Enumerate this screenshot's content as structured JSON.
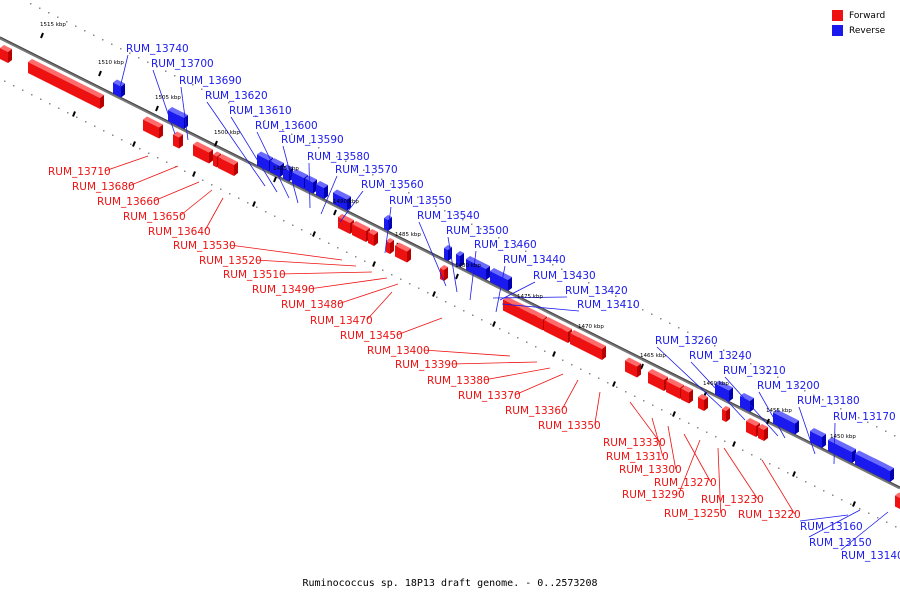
{
  "legend": {
    "forward": {
      "label": "Forward",
      "color": "#ee1111"
    },
    "reverse": {
      "label": "Reverse",
      "color": "#1a1aee"
    }
  },
  "caption": "Ruminococcus sp. 18P13 draft genome. - 0..2573208",
  "scale_labels": [
    "1515 kbp",
    "1510 kbp",
    "1505 kbp",
    "1500 kbp",
    "1495 kbp",
    "1490 kbp",
    "1485 kbp",
    "1480 kbp",
    "1475 kbp",
    "1470 kbp",
    "1465 kbp",
    "1460 kbp",
    "1455 kbp",
    "1450 kbp"
  ],
  "reverse_genes": [
    "RUM_13740",
    "RUM_13700",
    "RUM_13690",
    "RUM_13620",
    "RUM_13610",
    "RUM_13600",
    "RUM_13590",
    "RUM_13580",
    "RUM_13570",
    "RUM_13560",
    "RUM_13550",
    "RUM_13540",
    "RUM_13500",
    "RUM_13460",
    "RUM_13440",
    "RUM_13430",
    "RUM_13420",
    "RUM_13410",
    "RUM_13260",
    "RUM_13240",
    "RUM_13210",
    "RUM_13200",
    "RUM_13180",
    "RUM_13170",
    "RUM_13160",
    "RUM_13150",
    "RUM_13140"
  ],
  "forward_genes": [
    "RUM_13710",
    "RUM_13680",
    "RUM_13660",
    "RUM_13650",
    "RUM_13640",
    "RUM_13530",
    "RUM_13520",
    "RUM_13510",
    "RUM_13490",
    "RUM_13480",
    "RUM_13470",
    "RUM_13450",
    "RUM_13400",
    "RUM_13390",
    "RUM_13380",
    "RUM_13370",
    "RUM_13360",
    "RUM_13350",
    "RUM_13330",
    "RUM_13310",
    "RUM_13300",
    "RUM_13270",
    "RUM_13290",
    "RUM_13230",
    "RUM_13250",
    "RUM_13220"
  ]
}
